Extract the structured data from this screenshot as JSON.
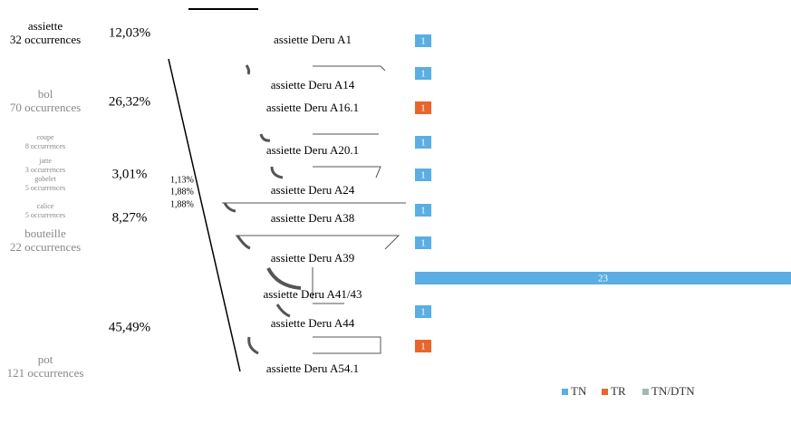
{
  "chart_data": [
    {
      "type": "stacked-column",
      "categories": [
        "assiette",
        "bol",
        "coupe",
        "jatte",
        "gobelet",
        "calice",
        "bouteille",
        "pot"
      ],
      "sublabels": [
        "32 occurrences",
        "70 occurrences",
        "8 occurrences",
        "3 occurrences",
        "5 occurrences",
        "5 occurrences",
        "22 occurrences",
        "121 occurrences"
      ],
      "values": [
        12.03,
        26.32,
        3.01,
        1.13,
        1.88,
        1.88,
        8.27,
        45.49
      ],
      "value_labels": [
        "12,03%",
        "26,32%",
        "3,01%",
        "1,13%",
        "1,88%",
        "1,88%",
        "8,27%",
        "45,49%"
      ],
      "colors": [
        "#ffffff",
        "#7a7a7a",
        "#7a7a7a",
        "#7a7a7a",
        "#7a7a7a",
        "#7a7a7a",
        "#7a7a7a",
        "#7a7a7a"
      ],
      "ylim": [
        0,
        100
      ]
    },
    {
      "type": "hbar",
      "categories": [
        "assiette Deru A1",
        "assiette Deru A14",
        "assiette Deru A16.1",
        "assiette Deru A20.1",
        "assiette Deru A24",
        "assiette Deru A38",
        "assiette Deru A39",
        "assiette Deru A41/43",
        "assiette Deru A44",
        "assiette Deru A54.1"
      ],
      "series": [
        {
          "name": "TN",
          "color": "#5aaee3",
          "values": [
            1,
            1,
            null,
            1,
            1,
            1,
            1,
            23,
            1,
            null
          ]
        },
        {
          "name": "TR",
          "color": "#e8662c",
          "values": [
            null,
            null,
            1,
            null,
            null,
            null,
            null,
            null,
            null,
            1
          ]
        },
        {
          "name": "TN/DTN",
          "color": "#a4b7b0",
          "values": [
            null,
            null,
            null,
            null,
            null,
            null,
            null,
            null,
            null,
            null
          ]
        }
      ],
      "xlim": [
        0,
        23
      ]
    }
  ]
}
